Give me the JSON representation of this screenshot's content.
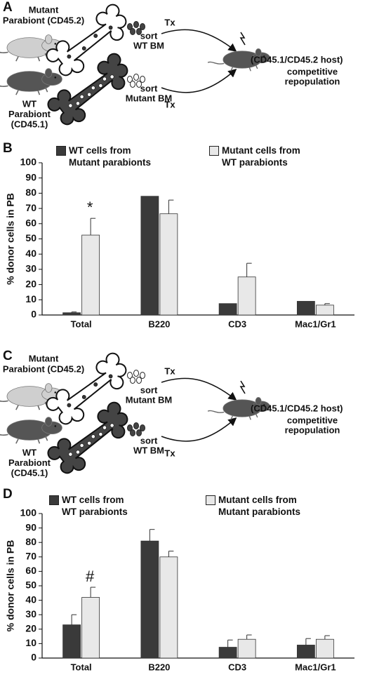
{
  "diagrams": [
    {
      "label": "A",
      "donor_top": [
        "Mutant",
        "Parabiont (CD45.2)"
      ],
      "donor_bottom": [
        "WT",
        "Parabiont",
        "(CD45.1)"
      ],
      "sort_top": [
        "sort",
        "WT BM"
      ],
      "sort_bottom": [
        "sort",
        "Mutant  BM"
      ],
      "tx_top": "Tx",
      "tx_bottom": "Tx",
      "host": "(CD45.1/CD45.2  host)",
      "readout": [
        "competitive",
        "repopulation"
      ]
    },
    {
      "label": "C",
      "donor_top": [
        "Mutant",
        "Parabiont (CD45.2)"
      ],
      "donor_bottom": [
        "WT",
        "Parabiont",
        "(CD45.1)"
      ],
      "sort_top": [
        "sort",
        "Mutant  BM"
      ],
      "sort_bottom": [
        "sort",
        "WT BM"
      ],
      "tx_top": "Tx",
      "tx_bottom": "Tx",
      "host": "(CD45.1/CD45.2  host)",
      "readout": [
        "competitive",
        "repopulation"
      ]
    }
  ],
  "chart_data": [
    {
      "type": "bar",
      "panel_label": "B",
      "y_label": "% donor cells in PB",
      "categories": [
        "Total",
        "B220",
        "CD3",
        "Mac1/Gr1"
      ],
      "series": [
        {
          "name": "WT cells from\nMutant parabionts",
          "color": "#3a3a3a",
          "values": [
            1.5,
            78,
            7.5,
            9
          ],
          "errors": [
            0.5,
            null,
            null,
            null
          ]
        },
        {
          "name": "Mutant cells from\nWT parabionts",
          "color": "#e8e8e8",
          "values": [
            52.5,
            66.5,
            25,
            6.5
          ],
          "errors": [
            11,
            9,
            9,
            1
          ]
        }
      ],
      "annotations": [
        {
          "text": "*",
          "category": "Total"
        }
      ],
      "ylim": [
        0,
        100
      ],
      "yticks": [
        0,
        10,
        20,
        30,
        40,
        50,
        60,
        70,
        80,
        90,
        100
      ]
    },
    {
      "type": "bar",
      "panel_label": "D",
      "y_label": "% donor cells in PB",
      "categories": [
        "Total",
        "B220",
        "CD3",
        "Mac1/Gr1"
      ],
      "series": [
        {
          "name": "WT cells from\nWT parabionts",
          "color": "#3a3a3a",
          "values": [
            23,
            81,
            7.5,
            9
          ],
          "errors": [
            7,
            8,
            5,
            4.5
          ]
        },
        {
          "name": "Mutant cells from\nMutant parabionts",
          "color": "#e8e8e8",
          "values": [
            42,
            70,
            13,
            13
          ],
          "errors": [
            7,
            4,
            3,
            2.5
          ]
        }
      ],
      "annotations": [
        {
          "text": "#",
          "category": "Total"
        }
      ],
      "ylim": [
        0,
        100
      ],
      "yticks": [
        0,
        10,
        20,
        30,
        40,
        50,
        60,
        70,
        80,
        90,
        100
      ]
    }
  ]
}
